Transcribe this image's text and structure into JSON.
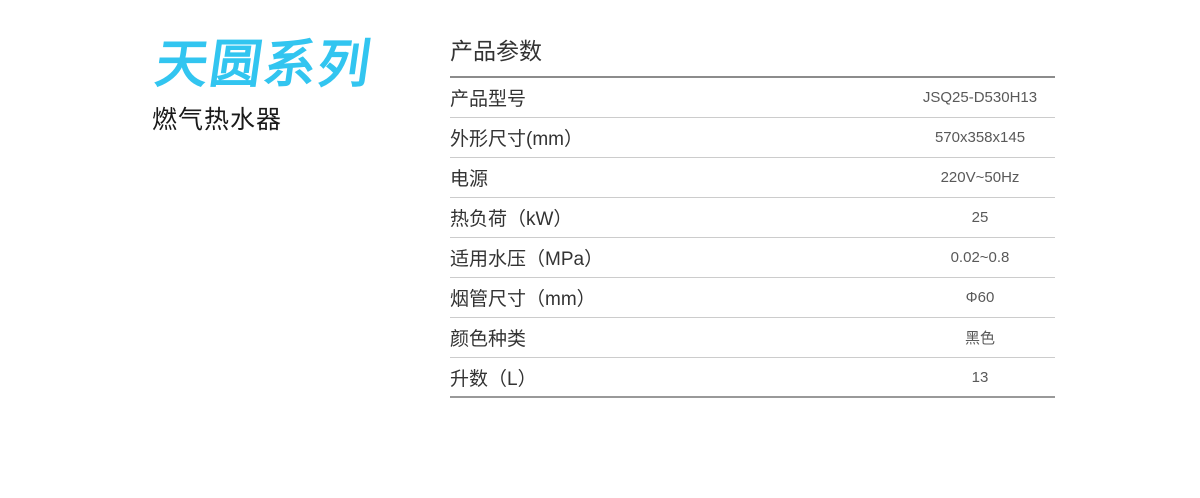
{
  "brand": {
    "series_title": "天圆系列",
    "series_color": "#32C5F0",
    "product_type": "燃气热水器"
  },
  "spec_table": {
    "title": "产品参数",
    "rows": [
      {
        "label": "产品型号",
        "value": "JSQ25-D530H13"
      },
      {
        "label": "外形尺寸(mm）",
        "value": "570x358x145"
      },
      {
        "label": "电源",
        "value": "220V~50Hz"
      },
      {
        "label": "热负荷（kW）",
        "value": "25"
      },
      {
        "label": "适用水压（MPa）",
        "value": "0.02~0.8"
      },
      {
        "label": "烟管尺寸（mm）",
        "value": "Φ60"
      },
      {
        "label": "颜色种类",
        "value": "黑色"
      },
      {
        "label": "升数（L）",
        "value": "13"
      }
    ]
  }
}
